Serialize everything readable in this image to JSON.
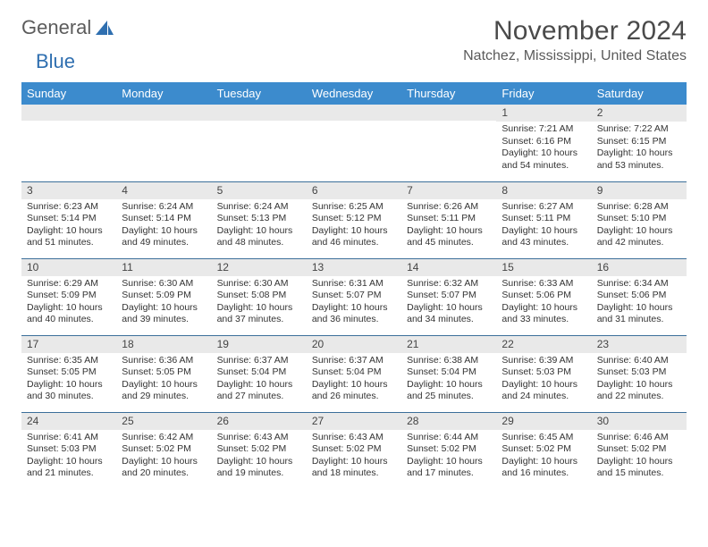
{
  "logo": {
    "word1": "General",
    "word2": "Blue"
  },
  "colors": {
    "header_bg": "#3c8bcd",
    "header_fg": "#ffffff",
    "row_divider": "#3c6f9a",
    "daynum_bg": "#e9e9e9",
    "text": "#333333",
    "title": "#4a4a4a",
    "logo_gray": "#5c5c5c",
    "logo_blue": "#2f6fb0",
    "page_bg": "#ffffff"
  },
  "title": "November 2024",
  "location": "Natchez, Mississippi, United States",
  "day_headers": [
    "Sunday",
    "Monday",
    "Tuesday",
    "Wednesday",
    "Thursday",
    "Friday",
    "Saturday"
  ],
  "weeks": [
    [
      null,
      null,
      null,
      null,
      null,
      {
        "n": "1",
        "sunrise": "Sunrise: 7:21 AM",
        "sunset": "Sunset: 6:16 PM",
        "dl1": "Daylight: 10 hours",
        "dl2": "and 54 minutes."
      },
      {
        "n": "2",
        "sunrise": "Sunrise: 7:22 AM",
        "sunset": "Sunset: 6:15 PM",
        "dl1": "Daylight: 10 hours",
        "dl2": "and 53 minutes."
      }
    ],
    [
      {
        "n": "3",
        "sunrise": "Sunrise: 6:23 AM",
        "sunset": "Sunset: 5:14 PM",
        "dl1": "Daylight: 10 hours",
        "dl2": "and 51 minutes."
      },
      {
        "n": "4",
        "sunrise": "Sunrise: 6:24 AM",
        "sunset": "Sunset: 5:14 PM",
        "dl1": "Daylight: 10 hours",
        "dl2": "and 49 minutes."
      },
      {
        "n": "5",
        "sunrise": "Sunrise: 6:24 AM",
        "sunset": "Sunset: 5:13 PM",
        "dl1": "Daylight: 10 hours",
        "dl2": "and 48 minutes."
      },
      {
        "n": "6",
        "sunrise": "Sunrise: 6:25 AM",
        "sunset": "Sunset: 5:12 PM",
        "dl1": "Daylight: 10 hours",
        "dl2": "and 46 minutes."
      },
      {
        "n": "7",
        "sunrise": "Sunrise: 6:26 AM",
        "sunset": "Sunset: 5:11 PM",
        "dl1": "Daylight: 10 hours",
        "dl2": "and 45 minutes."
      },
      {
        "n": "8",
        "sunrise": "Sunrise: 6:27 AM",
        "sunset": "Sunset: 5:11 PM",
        "dl1": "Daylight: 10 hours",
        "dl2": "and 43 minutes."
      },
      {
        "n": "9",
        "sunrise": "Sunrise: 6:28 AM",
        "sunset": "Sunset: 5:10 PM",
        "dl1": "Daylight: 10 hours",
        "dl2": "and 42 minutes."
      }
    ],
    [
      {
        "n": "10",
        "sunrise": "Sunrise: 6:29 AM",
        "sunset": "Sunset: 5:09 PM",
        "dl1": "Daylight: 10 hours",
        "dl2": "and 40 minutes."
      },
      {
        "n": "11",
        "sunrise": "Sunrise: 6:30 AM",
        "sunset": "Sunset: 5:09 PM",
        "dl1": "Daylight: 10 hours",
        "dl2": "and 39 minutes."
      },
      {
        "n": "12",
        "sunrise": "Sunrise: 6:30 AM",
        "sunset": "Sunset: 5:08 PM",
        "dl1": "Daylight: 10 hours",
        "dl2": "and 37 minutes."
      },
      {
        "n": "13",
        "sunrise": "Sunrise: 6:31 AM",
        "sunset": "Sunset: 5:07 PM",
        "dl1": "Daylight: 10 hours",
        "dl2": "and 36 minutes."
      },
      {
        "n": "14",
        "sunrise": "Sunrise: 6:32 AM",
        "sunset": "Sunset: 5:07 PM",
        "dl1": "Daylight: 10 hours",
        "dl2": "and 34 minutes."
      },
      {
        "n": "15",
        "sunrise": "Sunrise: 6:33 AM",
        "sunset": "Sunset: 5:06 PM",
        "dl1": "Daylight: 10 hours",
        "dl2": "and 33 minutes."
      },
      {
        "n": "16",
        "sunrise": "Sunrise: 6:34 AM",
        "sunset": "Sunset: 5:06 PM",
        "dl1": "Daylight: 10 hours",
        "dl2": "and 31 minutes."
      }
    ],
    [
      {
        "n": "17",
        "sunrise": "Sunrise: 6:35 AM",
        "sunset": "Sunset: 5:05 PM",
        "dl1": "Daylight: 10 hours",
        "dl2": "and 30 minutes."
      },
      {
        "n": "18",
        "sunrise": "Sunrise: 6:36 AM",
        "sunset": "Sunset: 5:05 PM",
        "dl1": "Daylight: 10 hours",
        "dl2": "and 29 minutes."
      },
      {
        "n": "19",
        "sunrise": "Sunrise: 6:37 AM",
        "sunset": "Sunset: 5:04 PM",
        "dl1": "Daylight: 10 hours",
        "dl2": "and 27 minutes."
      },
      {
        "n": "20",
        "sunrise": "Sunrise: 6:37 AM",
        "sunset": "Sunset: 5:04 PM",
        "dl1": "Daylight: 10 hours",
        "dl2": "and 26 minutes."
      },
      {
        "n": "21",
        "sunrise": "Sunrise: 6:38 AM",
        "sunset": "Sunset: 5:04 PM",
        "dl1": "Daylight: 10 hours",
        "dl2": "and 25 minutes."
      },
      {
        "n": "22",
        "sunrise": "Sunrise: 6:39 AM",
        "sunset": "Sunset: 5:03 PM",
        "dl1": "Daylight: 10 hours",
        "dl2": "and 24 minutes."
      },
      {
        "n": "23",
        "sunrise": "Sunrise: 6:40 AM",
        "sunset": "Sunset: 5:03 PM",
        "dl1": "Daylight: 10 hours",
        "dl2": "and 22 minutes."
      }
    ],
    [
      {
        "n": "24",
        "sunrise": "Sunrise: 6:41 AM",
        "sunset": "Sunset: 5:03 PM",
        "dl1": "Daylight: 10 hours",
        "dl2": "and 21 minutes."
      },
      {
        "n": "25",
        "sunrise": "Sunrise: 6:42 AM",
        "sunset": "Sunset: 5:02 PM",
        "dl1": "Daylight: 10 hours",
        "dl2": "and 20 minutes."
      },
      {
        "n": "26",
        "sunrise": "Sunrise: 6:43 AM",
        "sunset": "Sunset: 5:02 PM",
        "dl1": "Daylight: 10 hours",
        "dl2": "and 19 minutes."
      },
      {
        "n": "27",
        "sunrise": "Sunrise: 6:43 AM",
        "sunset": "Sunset: 5:02 PM",
        "dl1": "Daylight: 10 hours",
        "dl2": "and 18 minutes."
      },
      {
        "n": "28",
        "sunrise": "Sunrise: 6:44 AM",
        "sunset": "Sunset: 5:02 PM",
        "dl1": "Daylight: 10 hours",
        "dl2": "and 17 minutes."
      },
      {
        "n": "29",
        "sunrise": "Sunrise: 6:45 AM",
        "sunset": "Sunset: 5:02 PM",
        "dl1": "Daylight: 10 hours",
        "dl2": "and 16 minutes."
      },
      {
        "n": "30",
        "sunrise": "Sunrise: 6:46 AM",
        "sunset": "Sunset: 5:02 PM",
        "dl1": "Daylight: 10 hours",
        "dl2": "and 15 minutes."
      }
    ]
  ]
}
